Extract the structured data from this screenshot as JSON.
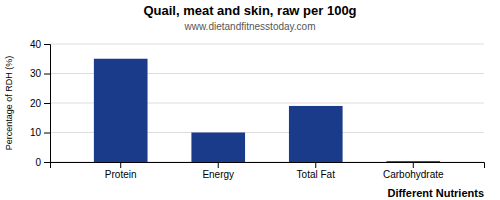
{
  "chart_data": {
    "type": "bar",
    "title": "Quail, meat and skin, raw per 100g",
    "subtitle": "www.dietandfitnesstoday.com",
    "xlabel": "Different Nutrients",
    "ylabel": "Percentage of RDH (%)",
    "categories": [
      "Protein",
      "Energy",
      "Total Fat",
      "Carbohydrate"
    ],
    "values": [
      35,
      10,
      19,
      0.3
    ],
    "color": "#1a3a8a",
    "ylim": [
      0,
      40
    ],
    "yticks": [
      0,
      10,
      20,
      30,
      40
    ],
    "grid": true
  }
}
